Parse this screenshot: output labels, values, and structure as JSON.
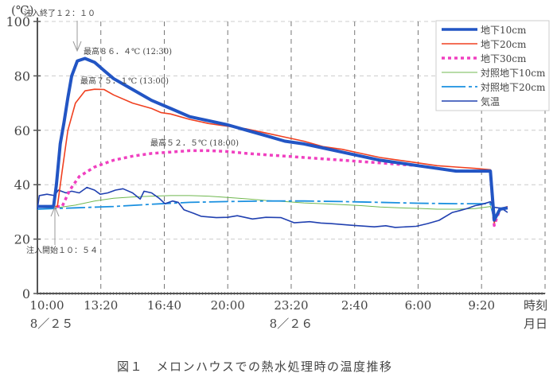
{
  "chart_data": {
    "type": "line",
    "title": "図１　メロンハウスでの熱水処理時の温度推移",
    "ylabel": "(℃)",
    "xlabel_time": "時刻",
    "xlabel_date": "月日",
    "ylim": [
      0,
      100
    ],
    "yticks": [
      0,
      20,
      40,
      60,
      80,
      100
    ],
    "xlim_hours_from_1000": [
      0,
      26.67
    ],
    "xticks": [
      {
        "h": 0,
        "label": "10:00"
      },
      {
        "h": 3.333,
        "label": "13:20"
      },
      {
        "h": 6.667,
        "label": "16:40"
      },
      {
        "h": 10,
        "label": "20:00"
      },
      {
        "h": 13.333,
        "label": "23:20"
      },
      {
        "h": 16.667,
        "label": "2:40"
      },
      {
        "h": 20,
        "label": "6:00"
      },
      {
        "h": 23.333,
        "label": "9:20"
      }
    ],
    "dates": [
      {
        "h": 0,
        "label": "8／２５"
      },
      {
        "h": 13.333,
        "label": "8／２６"
      }
    ],
    "grid": true,
    "legend_position": "top-right",
    "annotations": [
      {
        "text": "注入終了１２：１０",
        "h": 2.17,
        "y": 100
      },
      {
        "text": "注入開始１０：５４",
        "h": 0.9,
        "y": 32
      },
      {
        "text": "最高８６．４℃ (12:30)",
        "h": 2.5,
        "y": 86.4
      },
      {
        "text": "最高７５．１℃ (13:00)",
        "h": 3,
        "y": 75.1
      },
      {
        "text": "最高５２．５℃ (18:00)",
        "h": 8,
        "y": 52.5
      }
    ],
    "series": [
      {
        "name": "地下10cm",
        "color": "#2255c4",
        "width": 4,
        "dash": "",
        "points": [
          [
            0,
            32
          ],
          [
            0.85,
            32
          ],
          [
            1.0,
            40
          ],
          [
            1.2,
            55
          ],
          [
            1.4,
            63
          ],
          [
            1.6,
            72
          ],
          [
            1.8,
            80
          ],
          [
            2.1,
            85.5
          ],
          [
            2.5,
            86.4
          ],
          [
            3,
            85
          ],
          [
            3.5,
            82
          ],
          [
            4,
            79
          ],
          [
            5,
            75
          ],
          [
            6,
            71
          ],
          [
            7,
            68
          ],
          [
            8,
            65
          ],
          [
            9,
            63.5
          ],
          [
            10,
            62
          ],
          [
            11,
            60
          ],
          [
            12,
            58
          ],
          [
            13,
            56
          ],
          [
            14,
            55
          ],
          [
            15,
            53.5
          ],
          [
            16,
            52
          ],
          [
            17,
            50.5
          ],
          [
            18,
            49
          ],
          [
            19,
            48
          ],
          [
            20,
            47
          ],
          [
            21,
            46
          ],
          [
            22,
            45
          ],
          [
            23,
            45
          ],
          [
            23.8,
            45
          ],
          [
            24.0,
            27
          ],
          [
            24.3,
            31
          ],
          [
            24.7,
            31.5
          ]
        ]
      },
      {
        "name": "地下20cm",
        "color": "#f04020",
        "width": 1.6,
        "dash": "",
        "points": [
          [
            0,
            32
          ],
          [
            1.05,
            32
          ],
          [
            1.3,
            45
          ],
          [
            1.6,
            60
          ],
          [
            2,
            70
          ],
          [
            2.5,
            74.5
          ],
          [
            3,
            75.1
          ],
          [
            3.5,
            75
          ],
          [
            4,
            73
          ],
          [
            5,
            70
          ],
          [
            6,
            68
          ],
          [
            6.5,
            66.5
          ],
          [
            7,
            66
          ],
          [
            8,
            64
          ],
          [
            9,
            62.5
          ],
          [
            10,
            61.5
          ],
          [
            11,
            60.5
          ],
          [
            12,
            59
          ],
          [
            13,
            57.5
          ],
          [
            14,
            56
          ],
          [
            15,
            54
          ],
          [
            16,
            53
          ],
          [
            17,
            51.5
          ],
          [
            18,
            50
          ],
          [
            19,
            49
          ],
          [
            20,
            48
          ],
          [
            21,
            47
          ],
          [
            22,
            46.5
          ],
          [
            23,
            46
          ],
          [
            23.8,
            45.5
          ],
          [
            24.0,
            26
          ],
          [
            24.3,
            31
          ],
          [
            24.7,
            32
          ]
        ]
      },
      {
        "name": "地下30cm",
        "color": "#f040c0",
        "width": 3.5,
        "dash": "4 4",
        "points": [
          [
            0,
            32
          ],
          [
            1.3,
            32
          ],
          [
            1.7,
            38
          ],
          [
            2.2,
            43
          ],
          [
            3,
            46.5
          ],
          [
            4,
            49
          ],
          [
            5,
            50.5
          ],
          [
            6,
            51.5
          ],
          [
            7,
            52
          ],
          [
            8,
            52.5
          ],
          [
            9,
            52.5
          ],
          [
            10,
            52.2
          ],
          [
            11,
            51.5
          ],
          [
            12,
            51
          ],
          [
            13,
            50.5
          ],
          [
            14,
            50
          ],
          [
            15,
            49.5
          ],
          [
            16,
            49
          ],
          [
            17,
            48.5
          ],
          [
            18,
            48
          ],
          [
            19,
            47.5
          ],
          [
            20,
            47
          ],
          [
            21,
            46
          ],
          [
            22,
            45
          ],
          [
            23,
            45
          ],
          [
            23.8,
            45
          ],
          [
            24.0,
            25
          ],
          [
            24.3,
            31
          ],
          [
            24.7,
            31.5
          ]
        ]
      },
      {
        "name": "対照地下10cm",
        "color": "#70b850",
        "width": 1,
        "dash": "",
        "points": [
          [
            0,
            31
          ],
          [
            1,
            31.5
          ],
          [
            2,
            32.5
          ],
          [
            3,
            34
          ],
          [
            4,
            35
          ],
          [
            5,
            35.5
          ],
          [
            6,
            35.8
          ],
          [
            7,
            36
          ],
          [
            8,
            36
          ],
          [
            9,
            35.8
          ],
          [
            10,
            35.3
          ],
          [
            11,
            34.8
          ],
          [
            12,
            34.2
          ],
          [
            13,
            33.8
          ],
          [
            14,
            33.3
          ],
          [
            15,
            33
          ],
          [
            16,
            32.7
          ],
          [
            17,
            32.3
          ],
          [
            18,
            31.8
          ],
          [
            19,
            31.5
          ],
          [
            20,
            31.3
          ],
          [
            21,
            31
          ],
          [
            22,
            31
          ],
          [
            23,
            31.2
          ],
          [
            23.8,
            32
          ],
          [
            24.0,
            28
          ],
          [
            24.3,
            31
          ],
          [
            24.7,
            32
          ]
        ]
      },
      {
        "name": "対照地下20cm",
        "color": "#1a90e0",
        "width": 1.8,
        "dash": "24 4 4 4",
        "points": [
          [
            0,
            31
          ],
          [
            2,
            31.5
          ],
          [
            4,
            32
          ],
          [
            6,
            32.8
          ],
          [
            8,
            33.5
          ],
          [
            10,
            33.8
          ],
          [
            12,
            34
          ],
          [
            14,
            34
          ],
          [
            16,
            33.8
          ],
          [
            18,
            33.5
          ],
          [
            20,
            33.2
          ],
          [
            22,
            33
          ],
          [
            23.8,
            33
          ],
          [
            24.0,
            27
          ],
          [
            24.3,
            31.5
          ],
          [
            24.7,
            31.5
          ]
        ]
      },
      {
        "name": "気温",
        "color": "#2040b0",
        "width": 1.6,
        "dash": "",
        "points": [
          [
            0,
            31
          ],
          [
            0.1,
            36
          ],
          [
            0.5,
            36.5
          ],
          [
            0.9,
            36
          ],
          [
            1.1,
            38
          ],
          [
            1.5,
            37
          ],
          [
            1.8,
            37.6
          ],
          [
            2.2,
            37
          ],
          [
            2.6,
            39
          ],
          [
            3,
            38
          ],
          [
            3.3,
            36.5
          ],
          [
            3.7,
            37
          ],
          [
            4.1,
            38
          ],
          [
            4.5,
            38.5
          ],
          [
            5,
            37
          ],
          [
            5.4,
            34.7
          ],
          [
            5.6,
            37.6
          ],
          [
            6,
            37
          ],
          [
            6.4,
            35
          ],
          [
            6.7,
            33
          ],
          [
            7.1,
            34
          ],
          [
            7.4,
            33.5
          ],
          [
            7.7,
            30.8
          ],
          [
            8.2,
            29.5
          ],
          [
            8.6,
            28.4
          ],
          [
            9.4,
            27.9
          ],
          [
            10,
            28
          ],
          [
            10.5,
            28.6
          ],
          [
            11.3,
            27.4
          ],
          [
            12,
            28
          ],
          [
            12.8,
            27.9
          ],
          [
            13.5,
            26
          ],
          [
            14.3,
            26.4
          ],
          [
            14.9,
            25.9
          ],
          [
            15.4,
            25.7
          ],
          [
            16.5,
            25.1
          ],
          [
            17.1,
            24.8
          ],
          [
            17.7,
            24.5
          ],
          [
            18.3,
            24.9
          ],
          [
            18.8,
            24.3
          ],
          [
            19.9,
            24.7
          ],
          [
            20.5,
            25.7
          ],
          [
            21.1,
            26.9
          ],
          [
            21.8,
            29.8
          ],
          [
            22.2,
            30.5
          ],
          [
            22.6,
            31.3
          ],
          [
            23,
            32.3
          ],
          [
            23.3,
            32.7
          ],
          [
            23.8,
            33.7
          ],
          [
            24,
            31.7
          ],
          [
            24.4,
            31.3
          ],
          [
            24.7,
            29.8
          ]
        ]
      }
    ]
  }
}
